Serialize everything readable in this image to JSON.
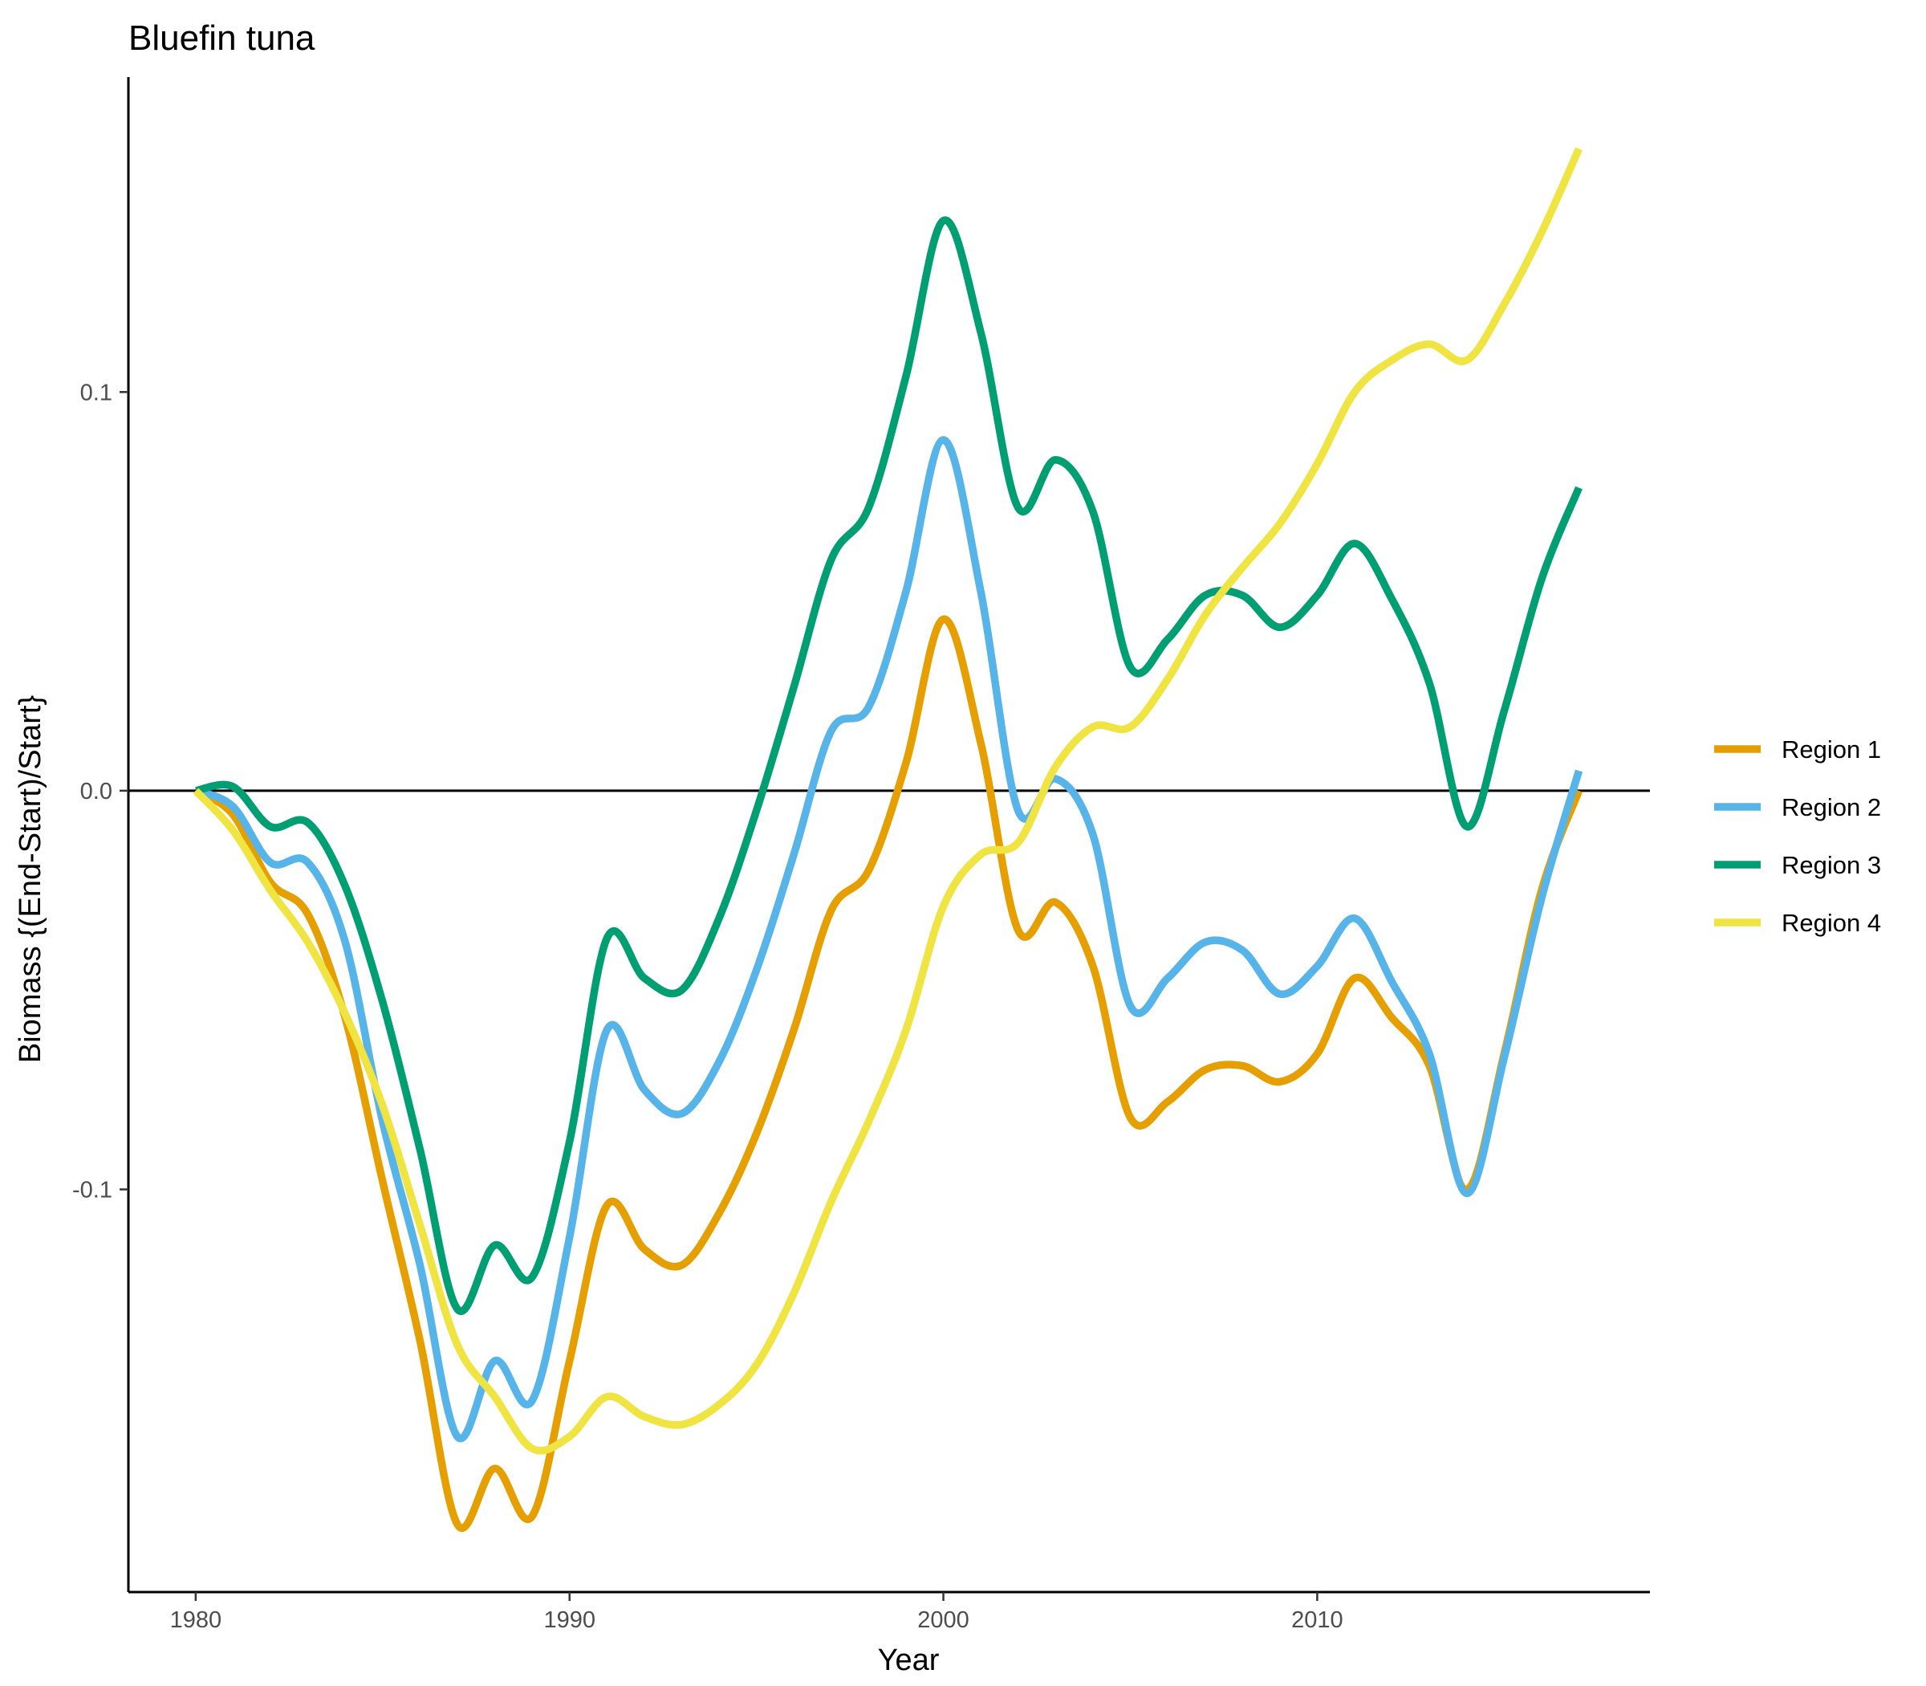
{
  "chart_data": {
    "type": "line",
    "title": "Bluefin tuna",
    "xlabel": "Year",
    "ylabel": "Biomass {(End-Start)/Start}",
    "xlim": [
      1978.2,
      2018.9
    ],
    "ylim": [
      -0.201,
      0.179
    ],
    "xticks": [
      1980,
      1990,
      2000,
      2010
    ],
    "xtick_labels": [
      "1980",
      "1990",
      "2000",
      "2010"
    ],
    "yticks": [
      -0.1,
      0.0,
      0.1
    ],
    "ytick_labels": [
      "-0.1",
      "0.0",
      "0.1"
    ],
    "hline": 0,
    "grid": false,
    "legend_position": "right",
    "x": [
      1980,
      1981,
      1982,
      1983,
      1984,
      1985,
      1986,
      1987,
      1988,
      1989,
      1990,
      1991,
      1992,
      1993,
      1994,
      1995,
      1996,
      1997,
      1998,
      1999,
      2000,
      2001,
      2002,
      2003,
      2004,
      2005,
      2006,
      2007,
      2008,
      2009,
      2010,
      2011,
      2012,
      2013,
      2014,
      2015,
      2016,
      2017
    ],
    "series": [
      {
        "name": "Region 1",
        "color": "#E69F00",
        "values": [
          0.0,
          -0.006,
          -0.023,
          -0.031,
          -0.057,
          -0.098,
          -0.138,
          -0.184,
          -0.17,
          -0.182,
          -0.143,
          -0.104,
          -0.115,
          -0.119,
          -0.106,
          -0.086,
          -0.06,
          -0.03,
          -0.02,
          0.007,
          0.043,
          0.012,
          -0.035,
          -0.028,
          -0.044,
          -0.082,
          -0.078,
          -0.07,
          -0.069,
          -0.073,
          -0.066,
          -0.047,
          -0.057,
          -0.069,
          -0.1,
          -0.066,
          -0.025,
          0.0
        ]
      },
      {
        "name": "Region 2",
        "color": "#56B4E9",
        "values": [
          0.0,
          -0.004,
          -0.018,
          -0.018,
          -0.038,
          -0.083,
          -0.119,
          -0.162,
          -0.143,
          -0.153,
          -0.112,
          -0.06,
          -0.075,
          -0.081,
          -0.068,
          -0.045,
          -0.016,
          0.015,
          0.021,
          0.05,
          0.088,
          0.05,
          -0.005,
          0.003,
          -0.011,
          -0.054,
          -0.047,
          -0.038,
          -0.04,
          -0.051,
          -0.044,
          -0.032,
          -0.048,
          -0.066,
          -0.101,
          -0.067,
          -0.027,
          0.005
        ]
      },
      {
        "name": "Region 3",
        "color": "#009E73",
        "values": [
          0.0,
          0.001,
          -0.009,
          -0.008,
          -0.024,
          -0.053,
          -0.09,
          -0.13,
          -0.114,
          -0.122,
          -0.088,
          -0.037,
          -0.047,
          -0.05,
          -0.032,
          -0.005,
          0.026,
          0.058,
          0.071,
          0.104,
          0.143,
          0.115,
          0.071,
          0.083,
          0.07,
          0.031,
          0.038,
          0.049,
          0.049,
          0.041,
          0.049,
          0.062,
          0.048,
          0.027,
          -0.009,
          0.02,
          0.053,
          0.076
        ]
      },
      {
        "name": "Region 4",
        "color": "#F0E442",
        "values": [
          0.0,
          -0.01,
          -0.025,
          -0.038,
          -0.056,
          -0.079,
          -0.109,
          -0.139,
          -0.152,
          -0.165,
          -0.162,
          -0.152,
          -0.157,
          -0.159,
          -0.154,
          -0.144,
          -0.126,
          -0.103,
          -0.083,
          -0.06,
          -0.029,
          -0.016,
          -0.013,
          0.006,
          0.016,
          0.016,
          0.028,
          0.044,
          0.056,
          0.067,
          0.082,
          0.1,
          0.108,
          0.112,
          0.108,
          0.122,
          0.14,
          0.161
        ]
      }
    ]
  }
}
